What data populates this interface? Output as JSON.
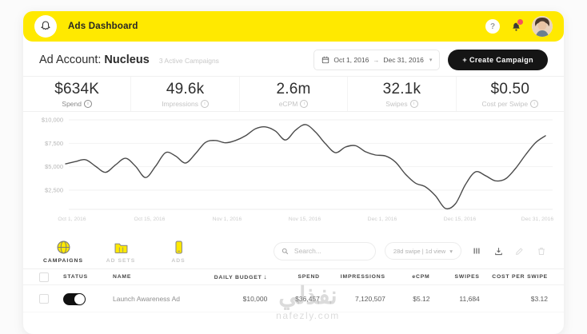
{
  "topbar": {
    "title": "Ads Dashboard",
    "help_glyph": "?"
  },
  "header": {
    "account_label": "Ad Account:",
    "account_name": "Nucleus",
    "subtitle": "3 Active Campaigns",
    "date_start": "Oct 1, 2016",
    "date_arrow": "→",
    "date_end": "Dec 31, 2016",
    "chevron": "▾",
    "create_button": "+ Create Campaign"
  },
  "stats": [
    {
      "value": "$634K",
      "label": "Spend",
      "active": true
    },
    {
      "value": "49.6k",
      "label": "Impressions",
      "active": false
    },
    {
      "value": "2.6m",
      "label": "eCPM",
      "active": false
    },
    {
      "value": "32.1k",
      "label": "Swipes",
      "active": false
    },
    {
      "value": "$0.50",
      "label": "Cost per Swipe",
      "active": false
    }
  ],
  "chart_data": {
    "type": "line",
    "series": [
      {
        "name": "Spend",
        "values": [
          5300,
          5550,
          5750,
          5050,
          4400,
          5200,
          5900,
          5050,
          3850,
          5050,
          6500,
          6150,
          5400,
          6400,
          7600,
          7800,
          7550,
          7800,
          8300,
          9050,
          9250,
          8800,
          7850,
          8900,
          9500,
          8700,
          7450,
          6500,
          7100,
          7250,
          6600,
          6250,
          6150,
          5500,
          4200,
          3250,
          2850,
          1900,
          550,
          1050,
          3100,
          4450,
          4050,
          3500,
          3700,
          4800,
          6250,
          7550,
          8300
        ]
      }
    ],
    "x_ticks": [
      "Oct 1, 2016",
      "Oct 15, 2016",
      "Nov 1, 2016",
      "Nov 15, 2016",
      "Dec 1, 2016",
      "Dec 15, 2016",
      "Dec 31, 2016"
    ],
    "y_ticks": [
      "$10,000",
      "$7,500",
      "$5,000",
      "$2,500"
    ],
    "y_tick_values": [
      10000,
      7500,
      5000,
      2500
    ],
    "ylim": [
      0,
      10000
    ],
    "grid": true,
    "line_color": "#4a4a4a"
  },
  "toolbar": {
    "tabs": [
      {
        "label": "CAMPAIGNS",
        "active": true
      },
      {
        "label": "AD SETS",
        "active": false
      },
      {
        "label": "ADS",
        "active": false
      }
    ],
    "search_placeholder": "Search...",
    "attribution": "28d swipe | 1d view",
    "chevron": "▾"
  },
  "table": {
    "headers": [
      "STATUS",
      "NAME",
      "DAILY BUDGET",
      "SPEND",
      "IMPRESSIONS",
      "eCPM",
      "SWIPES",
      "COST PER SWIPE"
    ],
    "sort_icon": "↓",
    "rows": [
      {
        "status": "on",
        "name": "Launch Awareness Ad",
        "daily_budget": "$10,000",
        "spend": "$36,457",
        "impressions": "7,120,507",
        "ecpm": "$5.12",
        "swipes": "11,684",
        "cost_per_swipe": "$3.12"
      }
    ]
  },
  "watermark": {
    "arabic": "نفذلي",
    "domain": "nafezly.com"
  }
}
